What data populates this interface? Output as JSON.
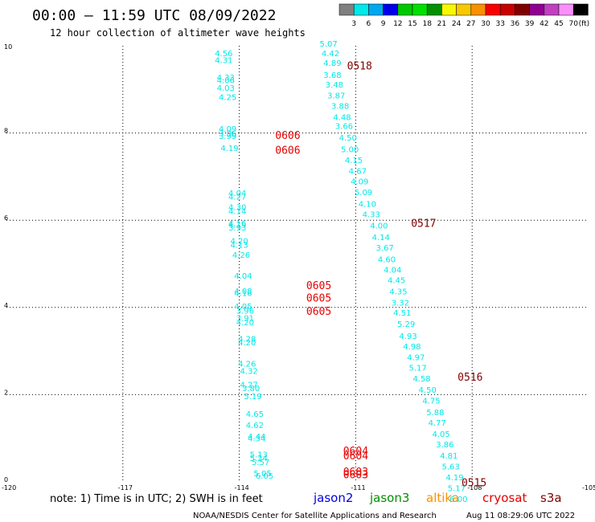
{
  "chart_data": {
    "type": "scatter",
    "title": "00:00 – 11:59 UTC 08/09/2022",
    "subtitle": "12 hour collection of altimeter wave heights",
    "xlim": [
      -120,
      -105
    ],
    "ylim": [
      0,
      10
    ],
    "x_tick_labels": [
      "-120",
      "-117",
      "-114",
      "-111",
      "-108",
      "-105"
    ],
    "y_tick_labels": [
      "0",
      "2",
      "4",
      "6",
      "8",
      "10"
    ],
    "grid": true,
    "colorbar": {
      "position": "top-right",
      "colors": [
        "#808080",
        "#00e8e8",
        "#00a8f0",
        "#0000e8",
        "#00c800",
        "#00e000",
        "#009000",
        "#f8f800",
        "#f8c800",
        "#f89000",
        "#f80000",
        "#c80000",
        "#800000",
        "#900090",
        "#c040c0",
        "#f890f8",
        "#000000"
      ],
      "labels": [
        "3",
        "6",
        "9",
        "12",
        "15",
        "18",
        "21",
        "24",
        "27",
        "30",
        "33",
        "36",
        "39",
        "42",
        "45",
        "70"
      ],
      "unit": "(ft)"
    },
    "series": [
      {
        "name": "jason2",
        "color": "#00e8e8",
        "points": [
          [
            -114.4,
            9.76,
            "4.56"
          ],
          [
            -114.4,
            9.6,
            "4.31"
          ],
          [
            -114.35,
            9.21,
            "4.33"
          ],
          [
            -114.35,
            9.14,
            "4.06"
          ],
          [
            -114.35,
            8.97,
            "4.03"
          ],
          [
            -114.3,
            8.76,
            "4.25"
          ],
          [
            -114.3,
            8.03,
            "4.09"
          ],
          [
            -114.3,
            7.93,
            "3.96"
          ],
          [
            -114.3,
            7.86,
            "3.99"
          ],
          [
            -114.25,
            7.59,
            "4.19"
          ],
          [
            -114.05,
            6.56,
            "4.04"
          ],
          [
            -114.05,
            6.47,
            "4.27"
          ],
          [
            -114.05,
            6.23,
            "4.30"
          ],
          [
            -114.05,
            6.14,
            "4.14"
          ],
          [
            -114.05,
            5.87,
            "4.16"
          ],
          [
            -114.05,
            5.83,
            "4.19"
          ],
          [
            -114.05,
            5.76,
            "3.93"
          ],
          [
            -114.0,
            5.46,
            "4.20"
          ],
          [
            -114.0,
            5.37,
            "4.13"
          ],
          [
            -113.95,
            5.14,
            "4.26"
          ],
          [
            -113.9,
            4.66,
            "4.04"
          ],
          [
            -113.9,
            4.31,
            "4.08"
          ],
          [
            -113.9,
            4.26,
            "4.16"
          ],
          [
            -113.9,
            3.96,
            "4.05"
          ],
          [
            -113.85,
            3.86,
            "3.96"
          ],
          [
            -113.85,
            3.69,
            "3.91"
          ],
          [
            -113.85,
            3.59,
            "4.20"
          ],
          [
            -113.8,
            3.21,
            "4.28"
          ],
          [
            -113.8,
            3.13,
            "4.20"
          ],
          [
            -113.8,
            2.64,
            "4.26"
          ],
          [
            -113.75,
            2.48,
            "4.32"
          ],
          [
            -113.75,
            2.16,
            "4.27"
          ],
          [
            -113.7,
            2.08,
            "3.80"
          ],
          [
            -113.65,
            1.9,
            "5.19"
          ],
          [
            -113.6,
            1.49,
            "4.65"
          ],
          [
            -113.6,
            1.23,
            "4.62"
          ],
          [
            -113.55,
            0.98,
            "4.44"
          ],
          [
            -113.55,
            0.93,
            "4.34"
          ],
          [
            -113.5,
            0.56,
            "5.13"
          ],
          [
            -113.5,
            0.48,
            "5.24"
          ],
          [
            -113.45,
            0.39,
            "5.57"
          ],
          [
            -113.4,
            0.13,
            "5.05"
          ],
          [
            -113.35,
            0.07,
            "6.05"
          ]
        ]
      },
      {
        "name": "jason3",
        "color": "#00e8e8",
        "points": [
          [
            -111.7,
            9.98,
            "5.07"
          ],
          [
            -111.65,
            9.76,
            "4.42"
          ],
          [
            -111.6,
            9.54,
            "4.89"
          ],
          [
            -111.6,
            9.26,
            "3.68"
          ],
          [
            -111.55,
            9.04,
            "3.48"
          ],
          [
            -111.5,
            8.79,
            "3.87"
          ],
          [
            -111.4,
            8.55,
            "3.88"
          ],
          [
            -111.35,
            8.3,
            "4.48"
          ],
          [
            -111.3,
            8.09,
            "3.66"
          ],
          [
            -111.2,
            7.83,
            "4.50"
          ],
          [
            -111.15,
            7.56,
            "5.00"
          ],
          [
            -111.05,
            7.31,
            "4.15"
          ],
          [
            -110.95,
            7.06,
            "4.67"
          ],
          [
            -110.9,
            6.82,
            "4.09"
          ],
          [
            -110.8,
            6.57,
            "5.09"
          ],
          [
            -110.7,
            6.31,
            "4.10"
          ],
          [
            -110.6,
            6.07,
            "4.33"
          ],
          [
            -110.4,
            5.81,
            "4.00"
          ],
          [
            -110.35,
            5.54,
            "4.14"
          ],
          [
            -110.25,
            5.3,
            "3.67"
          ],
          [
            -110.2,
            5.04,
            "4.60"
          ],
          [
            -110.05,
            4.8,
            "4.04"
          ],
          [
            -109.95,
            4.56,
            "4.45"
          ],
          [
            -109.9,
            4.3,
            "4.35"
          ],
          [
            -109.85,
            4.04,
            "3.32"
          ],
          [
            -109.8,
            3.81,
            "4.51"
          ],
          [
            -109.7,
            3.55,
            "5.29"
          ],
          [
            -109.65,
            3.28,
            "4.93"
          ],
          [
            -109.55,
            3.04,
            "4.98"
          ],
          [
            -109.45,
            2.79,
            "4.97"
          ],
          [
            -109.4,
            2.55,
            "5.17"
          ],
          [
            -109.3,
            2.3,
            "4.58"
          ],
          [
            -109.15,
            2.04,
            "4.50"
          ],
          [
            -109.05,
            1.8,
            "4.75"
          ],
          [
            -108.95,
            1.53,
            "5.88"
          ],
          [
            -108.9,
            1.29,
            "4.77"
          ],
          [
            -108.8,
            1.03,
            "4.05"
          ],
          [
            -108.7,
            0.79,
            "3.86"
          ],
          [
            -108.6,
            0.53,
            "4.81"
          ],
          [
            -108.55,
            0.29,
            "5.63"
          ],
          [
            -108.45,
            0.04,
            "4.19"
          ],
          [
            -108.4,
            -0.21,
            "5.17"
          ],
          [
            -108.35,
            -0.46,
            "6.00"
          ]
        ]
      }
    ],
    "time_labels": [
      {
        "x": -110.9,
        "y": 9.46,
        "text": "0518",
        "color": "#800000"
      },
      {
        "x": -112.75,
        "y": 7.86,
        "text": "0606",
        "color": "#e80000"
      },
      {
        "x": -112.75,
        "y": 7.52,
        "text": "0606",
        "color": "#e80000"
      },
      {
        "x": -109.25,
        "y": 5.85,
        "text": "0517",
        "color": "#800000"
      },
      {
        "x": -111.95,
        "y": 4.42,
        "text": "0605",
        "color": "#e80000"
      },
      {
        "x": -111.95,
        "y": 4.13,
        "text": "0605",
        "color": "#e80000"
      },
      {
        "x": -111.95,
        "y": 3.83,
        "text": "0605",
        "color": "#e80000"
      },
      {
        "x": -108.05,
        "y": 2.32,
        "text": "0516",
        "color": "#800000"
      },
      {
        "x": -111.0,
        "y": 0.63,
        "text": "0604",
        "color": "#e80000"
      },
      {
        "x": -111.0,
        "y": 0.52,
        "text": "0604",
        "color": "#e80000"
      },
      {
        "x": -111.0,
        "y": 0.15,
        "text": "0603",
        "color": "#e80000"
      },
      {
        "x": -111.0,
        "y": 0.08,
        "text": "0603",
        "color": "#e80000"
      },
      {
        "x": -107.95,
        "y": -0.1,
        "text": "0515",
        "color": "#800000"
      }
    ]
  },
  "footer": {
    "note": "note: 1) Time is in UTC; 2) SWH is in feet",
    "satellites": [
      {
        "label": "jason2",
        "color": "#0000e8"
      },
      {
        "label": "jason3",
        "color": "#009000"
      },
      {
        "label": "altika",
        "color": "#f89000"
      },
      {
        "label": "cryosat",
        "color": "#e80000"
      },
      {
        "label": "s3a",
        "color": "#800000"
      }
    ],
    "credit": "NOAA/NESDIS Center for Satellite Applications and Research",
    "timestamp": "Aug 11 08:29:06 UTC 2022"
  }
}
